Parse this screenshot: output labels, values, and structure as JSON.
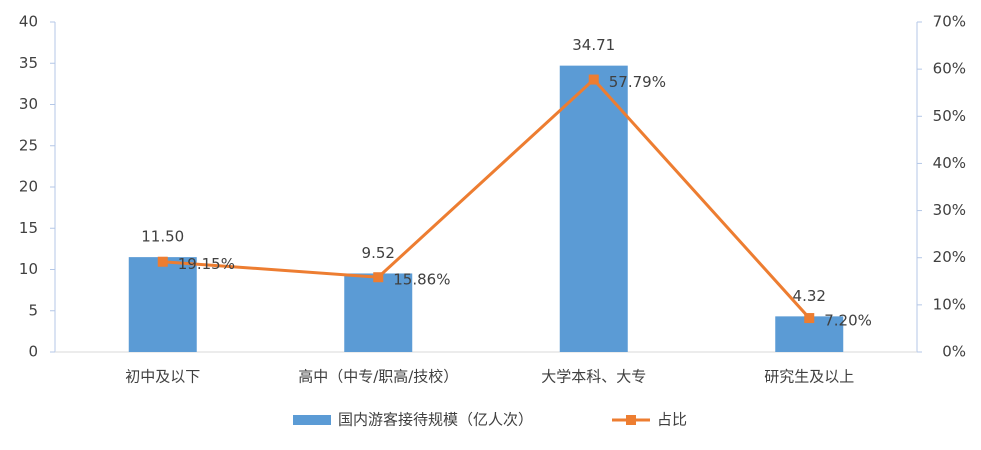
{
  "chart_data": {
    "type": "bar",
    "categories": [
      "初中及以下",
      "高中（中专/职高/技校）",
      "大学本科、大专",
      "研究生及以上"
    ],
    "series": [
      {
        "name": "国内游客接待规模（亿人次）",
        "type": "bar",
        "color": "#5b9bd5",
        "values": [
          11.5,
          9.52,
          34.71,
          4.32
        ],
        "value_labels": [
          "11.50",
          "9.52",
          "34.71",
          "4.32"
        ]
      },
      {
        "name": "占比",
        "type": "line",
        "axis": "y2",
        "color": "#ed7d31",
        "values": [
          19.15,
          15.86,
          57.79,
          7.2
        ],
        "value_labels": [
          "19.15%",
          "15.86%",
          "57.79%",
          "7.20%"
        ]
      }
    ],
    "ylim": [
      0,
      40
    ],
    "yticks": [
      0,
      5,
      10,
      15,
      20,
      25,
      30,
      35,
      40
    ],
    "y2lim": [
      0,
      70
    ],
    "y2ticks": [
      {
        "value": 0,
        "label": "0%"
      },
      {
        "value": 10,
        "label": "10%"
      },
      {
        "value": 20,
        "label": "20%"
      },
      {
        "value": 30,
        "label": "30%"
      },
      {
        "value": 40,
        "label": "40%"
      },
      {
        "value": 50,
        "label": "50%"
      },
      {
        "value": 60,
        "label": "60%"
      },
      {
        "value": 70,
        "label": "70%"
      }
    ],
    "grid": false,
    "legend": "bottom"
  }
}
